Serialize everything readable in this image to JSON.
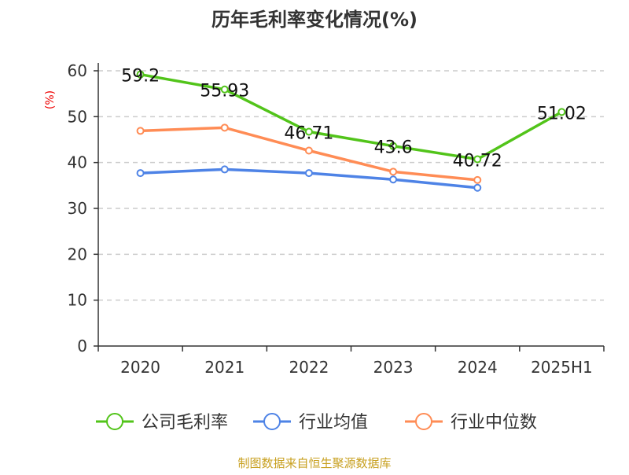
{
  "chart_data": {
    "type": "line",
    "title": "历年毛利率变化情况(%)",
    "ylabel": "(%)",
    "categories": [
      "2020",
      "2021",
      "2022",
      "2023",
      "2024",
      "2025H1"
    ],
    "ylim": [
      0,
      60
    ],
    "yticks": [
      0,
      10,
      20,
      30,
      40,
      50,
      60
    ],
    "grid": true,
    "legend_position": "bottom",
    "series": [
      {
        "name": "公司毛利率",
        "color": "#52c41a",
        "values": [
          59.2,
          55.93,
          46.71,
          43.6,
          40.72,
          51.02
        ],
        "labels": [
          "59.2",
          "55.93",
          "46.71",
          "43.6",
          "40.72",
          "51.02"
        ]
      },
      {
        "name": "行业均值",
        "color": "#4e83e6",
        "values": [
          37.7,
          38.5,
          37.7,
          36.3,
          34.5,
          null
        ]
      },
      {
        "name": "行业中位数",
        "color": "#ff8c55",
        "values": [
          46.9,
          47.6,
          42.6,
          38.0,
          36.2,
          null
        ]
      }
    ]
  },
  "footer": {
    "source": "制图数据来自恒生聚源数据库"
  }
}
